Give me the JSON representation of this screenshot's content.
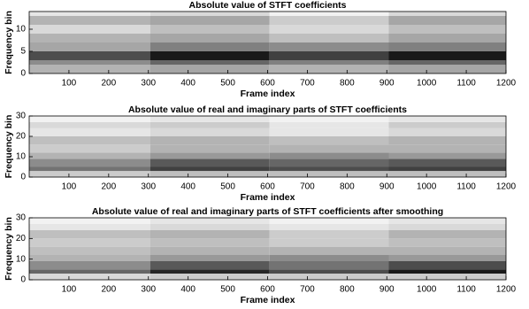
{
  "chart_data": [
    {
      "type": "heatmap",
      "title": "Absolute value of STFT coefficients",
      "xlabel": "Frame index",
      "ylabel": "Frequency bin",
      "xlim": [
        0,
        1200
      ],
      "xticks": [
        100,
        200,
        300,
        400,
        500,
        600,
        700,
        800,
        900,
        1000,
        1100,
        1200
      ],
      "ylim": [
        0,
        14
      ],
      "yticks": [
        0,
        5,
        10
      ],
      "colormap": "gray",
      "x_edges": [
        0,
        305,
        605,
        905,
        1200
      ],
      "y_edges": [
        0,
        2,
        3,
        5,
        7,
        9,
        11,
        13,
        14
      ],
      "values": [
        [
          0.3,
          0.35,
          0.3,
          0.35
        ],
        [
          0.45,
          0.6,
          0.5,
          0.6
        ],
        [
          0.7,
          0.9,
          0.75,
          0.9
        ],
        [
          0.35,
          0.5,
          0.45,
          0.5
        ],
        [
          0.3,
          0.35,
          0.25,
          0.35
        ],
        [
          0.15,
          0.25,
          0.15,
          0.25
        ],
        [
          0.3,
          0.35,
          0.2,
          0.35
        ],
        [
          0.1,
          0.15,
          0.05,
          0.15
        ]
      ]
    },
    {
      "type": "heatmap",
      "title": "Absolute value of real and imaginary parts of STFT coefficients",
      "xlabel": "Frame index",
      "ylabel": "Frequency bin",
      "xlim": [
        0,
        1200
      ],
      "xticks": [
        100,
        200,
        300,
        400,
        500,
        600,
        700,
        800,
        900,
        1000,
        1100,
        1200
      ],
      "ylim": [
        0,
        30
      ],
      "yticks": [
        0,
        10,
        20,
        30
      ],
      "colormap": "gray",
      "x_edges": [
        0,
        305,
        605,
        905,
        1200
      ],
      "y_edges": [
        0,
        3,
        5,
        9,
        12,
        16,
        20,
        24,
        27,
        30
      ],
      "values": [
        [
          0.2,
          0.25,
          0.25,
          0.25
        ],
        [
          0.55,
          0.75,
          0.7,
          0.75
        ],
        [
          0.45,
          0.65,
          0.6,
          0.65
        ],
        [
          0.3,
          0.4,
          0.45,
          0.4
        ],
        [
          0.2,
          0.3,
          0.3,
          0.3
        ],
        [
          0.25,
          0.3,
          0.25,
          0.3
        ],
        [
          0.1,
          0.15,
          0.1,
          0.15
        ],
        [
          0.15,
          0.2,
          0.1,
          0.2
        ],
        [
          0.05,
          0.1,
          0.05,
          0.1
        ]
      ]
    },
    {
      "type": "heatmap",
      "title": "Absolute value of real and imaginary parts of STFT coefficients after smoothing",
      "xlabel": "Frame index",
      "ylabel": "Frequency bin",
      "xlim": [
        0,
        1200
      ],
      "xticks": [
        100,
        200,
        300,
        400,
        500,
        600,
        700,
        800,
        900,
        1000,
        1100,
        1200
      ],
      "ylim": [
        0,
        30
      ],
      "yticks": [
        0,
        10,
        20,
        30
      ],
      "colormap": "gray",
      "x_edges": [
        0,
        305,
        605,
        905,
        1200
      ],
      "y_edges": [
        0,
        3,
        5,
        9,
        12,
        16,
        20,
        24,
        27,
        30
      ],
      "values": [
        [
          0.15,
          0.2,
          0.2,
          0.2
        ],
        [
          0.6,
          0.85,
          0.7,
          0.9
        ],
        [
          0.45,
          0.65,
          0.55,
          0.7
        ],
        [
          0.3,
          0.4,
          0.45,
          0.4
        ],
        [
          0.25,
          0.3,
          0.3,
          0.3
        ],
        [
          0.2,
          0.25,
          0.2,
          0.25
        ],
        [
          0.25,
          0.3,
          0.2,
          0.3
        ],
        [
          0.1,
          0.15,
          0.1,
          0.15
        ],
        [
          0.05,
          0.1,
          0.05,
          0.1
        ]
      ]
    }
  ]
}
